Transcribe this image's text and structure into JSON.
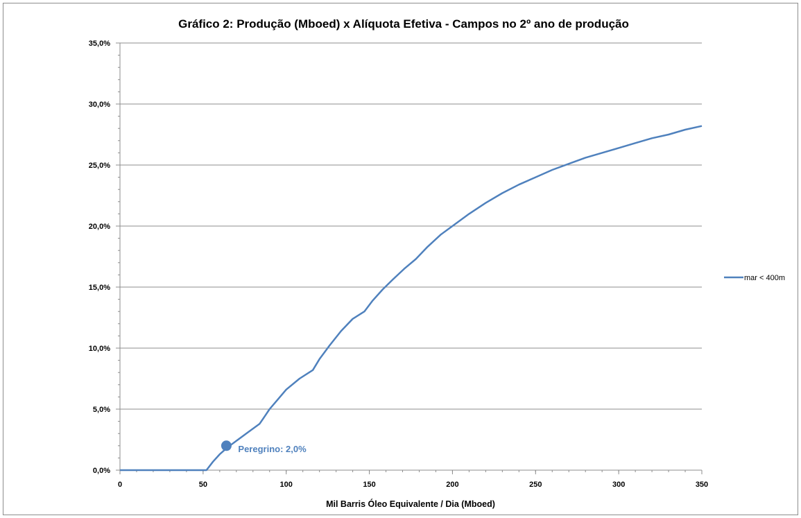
{
  "chart_data": {
    "type": "line",
    "title": "Gráfico 2: Produção (Mboed) x Alíquota Efetiva - Campos no 2º ano de produção",
    "xlabel": "Mil Barris Óleo Equivalente / Dia (Mboed)",
    "ylabel": "",
    "xlim": [
      0,
      350
    ],
    "ylim": [
      0,
      35
    ],
    "x_ticks": [
      "0",
      "50",
      "100",
      "150",
      "200",
      "250",
      "300",
      "350"
    ],
    "y_ticks": [
      "0,0%",
      "5,0%",
      "10,0%",
      "15,0%",
      "20,0%",
      "25,0%",
      "30,0%",
      "35,0%"
    ],
    "grid": "horizontal",
    "legend_position": "right",
    "series": [
      {
        "name": "mar < 400m",
        "color": "#4f81bd",
        "x": [
          0,
          52,
          56,
          60,
          65,
          70,
          77,
          84,
          87,
          90,
          95,
          100,
          108,
          116,
          120,
          126,
          133,
          140,
          147,
          152,
          158,
          164,
          171,
          178,
          185,
          193,
          200,
          210,
          220,
          230,
          240,
          250,
          260,
          270,
          280,
          290,
          300,
          310,
          320,
          330,
          340,
          350
        ],
        "y": [
          0,
          0,
          0.7,
          1.3,
          1.9,
          2.4,
          3.1,
          3.8,
          4.4,
          5.0,
          5.8,
          6.6,
          7.5,
          8.2,
          9.1,
          10.2,
          11.4,
          12.4,
          13.0,
          13.9,
          14.8,
          15.6,
          16.5,
          17.3,
          18.3,
          19.3,
          20.0,
          21.0,
          21.9,
          22.7,
          23.4,
          24.0,
          24.6,
          25.1,
          25.6,
          26.0,
          26.4,
          26.8,
          27.2,
          27.5,
          27.9,
          28.2
        ]
      }
    ],
    "annotations": [
      {
        "label": "Peregrino: 2,0%",
        "x": 64,
        "y": 2.0,
        "color": "#4f81bd"
      }
    ]
  }
}
